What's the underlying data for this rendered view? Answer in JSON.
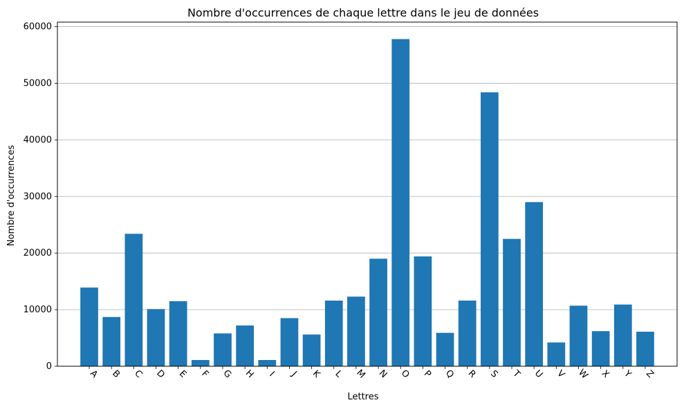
{
  "chart_data": {
    "type": "bar",
    "title": "Nombre d'occurrences de chaque lettre dans le jeu de données",
    "xlabel": "Lettres",
    "ylabel": "Nombre d'occurrences",
    "categories": [
      "A",
      "B",
      "C",
      "D",
      "E",
      "F",
      "G",
      "H",
      "I",
      "J",
      "K",
      "L",
      "M",
      "N",
      "O",
      "P",
      "Q",
      "R",
      "S",
      "T",
      "U",
      "V",
      "W",
      "X",
      "Y",
      "Z"
    ],
    "values": [
      13900,
      8700,
      23400,
      10100,
      11500,
      1100,
      5800,
      7200,
      1100,
      8500,
      5600,
      11600,
      12300,
      19000,
      57800,
      19400,
      5900,
      11600,
      48400,
      22500,
      29000,
      4200,
      10700,
      6200,
      10900,
      6100
    ],
    "ylim": [
      0,
      60800
    ],
    "yticks": [
      0,
      10000,
      20000,
      30000,
      40000,
      50000,
      60000
    ],
    "grid": "y",
    "bar_color": "#1f77b4",
    "x_tick_rotation": -45
  }
}
